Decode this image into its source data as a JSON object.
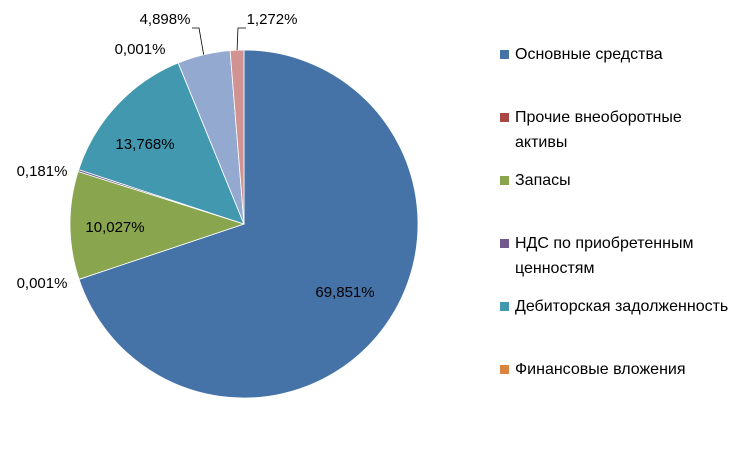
{
  "chart_data": {
    "type": "pie",
    "categories": [
      "Основные средства",
      "Прочие внеоборотные активы",
      "Запасы",
      "НДС по приобретенным ценностям",
      "Дебиторская задолженность",
      "Финансовые вложения",
      null,
      null
    ],
    "values": [
      69.851,
      0.001,
      10.027,
      0.181,
      13.768,
      0.001,
      4.898,
      1.272
    ],
    "value_labels": [
      "69,851%",
      "0,001%",
      "10,027%",
      "0,181%",
      "13,768%",
      "0,001%",
      "4,898%",
      "1,272%"
    ],
    "colors": [
      "#4572a7",
      "#aa4643",
      "#89a54e",
      "#71588f",
      "#4198af",
      "#db843d",
      "#93a9cf",
      "#d19392"
    ],
    "legend": "right"
  }
}
